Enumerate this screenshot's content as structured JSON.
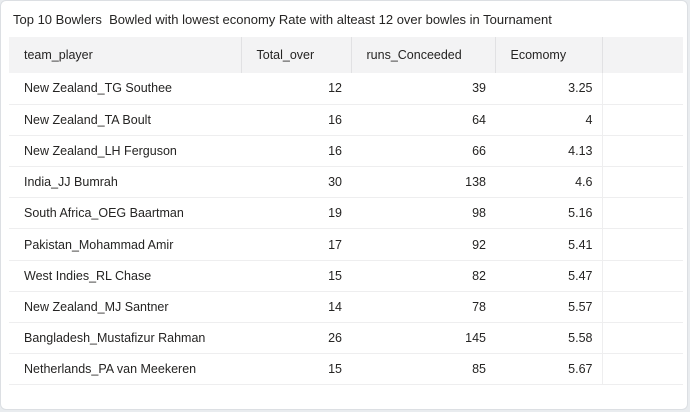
{
  "title": "Top 10 Bowlers  Bowled with lowest economy Rate with alteast 12 over bowles in Tournament",
  "columns": [
    "team_player",
    "Total_over",
    "runs_Conceeded",
    "Ecomomy"
  ],
  "rows": [
    [
      "New Zealand_TG Southee",
      "12",
      "39",
      "3.25"
    ],
    [
      "New Zealand_TA Boult",
      "16",
      "64",
      "4"
    ],
    [
      "New Zealand_LH Ferguson",
      "16",
      "66",
      "4.13"
    ],
    [
      "India_JJ Bumrah",
      "30",
      "138",
      "4.6"
    ],
    [
      "South Africa_OEG Baartman",
      "19",
      "98",
      "5.16"
    ],
    [
      "Pakistan_Mohammad Amir",
      "17",
      "92",
      "5.41"
    ],
    [
      "West Indies_RL Chase",
      "15",
      "82",
      "5.47"
    ],
    [
      "New Zealand_MJ Santner",
      "14",
      "78",
      "5.57"
    ],
    [
      "Bangladesh_Mustafizur Rahman",
      "26",
      "145",
      "5.58"
    ],
    [
      "Netherlands_PA van Meekeren",
      "15",
      "85",
      "5.67"
    ]
  ]
}
